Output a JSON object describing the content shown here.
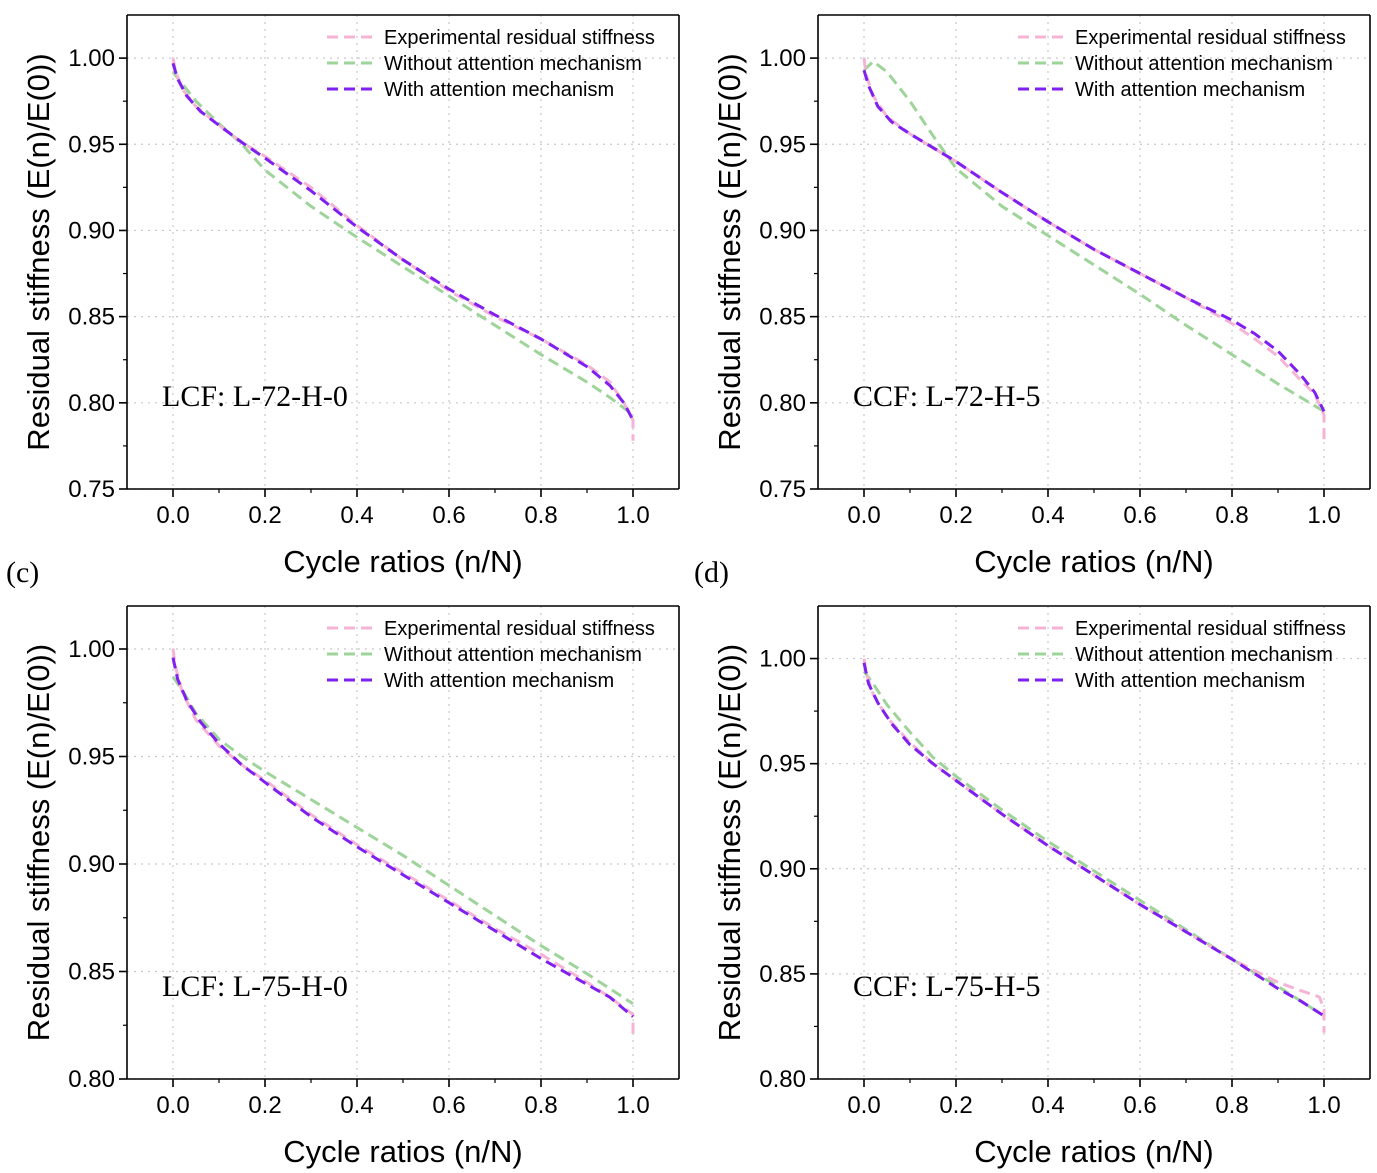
{
  "figure": {
    "panel_letters": [
      "(c)",
      "(d)"
    ]
  },
  "colors": {
    "experimental": "#f5b3d6",
    "without_attention": "#9ed49a",
    "with_attention": "#7f1ff0",
    "grid": "#c8c8c8",
    "axis": "#000000"
  },
  "chart_data": [
    {
      "type": "line",
      "annotation": "LCF: L-72-H-0",
      "xlabel": "Cycle ratios (n/N)",
      "ylabel": "Residual stiffness (E(n)/E(0))",
      "xlim": [
        -0.1,
        1.1
      ],
      "ylim": [
        0.75,
        1.025
      ],
      "xticks": [
        "0.0",
        "0.2",
        "0.4",
        "0.6",
        "0.8",
        "1.0"
      ],
      "yticks": [
        "0.75",
        "0.80",
        "0.85",
        "0.90",
        "0.95",
        "1.00"
      ],
      "grid": true,
      "legend_position": "top-right",
      "series": [
        {
          "name": "Experimental residual stiffness",
          "color": "experimental",
          "x": [
            0,
            0.005,
            0.02,
            0.05,
            0.1,
            0.15,
            0.2,
            0.3,
            0.4,
            0.5,
            0.6,
            0.7,
            0.8,
            0.9,
            0.95,
            0.98,
            1.0,
            1.0
          ],
          "y": [
            1.0,
            0.993,
            0.982,
            0.972,
            0.961,
            0.951,
            0.943,
            0.925,
            0.903,
            0.883,
            0.865,
            0.85,
            0.837,
            0.822,
            0.812,
            0.8,
            0.79,
            0.778
          ]
        },
        {
          "name": "Without attention mechanism",
          "color": "without_attention",
          "x": [
            0,
            0.02,
            0.05,
            0.1,
            0.15,
            0.2,
            0.3,
            0.4,
            0.5,
            0.6,
            0.7,
            0.8,
            0.9,
            0.95,
            1.0
          ],
          "y": [
            0.992,
            0.985,
            0.975,
            0.962,
            0.95,
            0.935,
            0.914,
            0.896,
            0.879,
            0.862,
            0.845,
            0.828,
            0.812,
            0.803,
            0.793
          ]
        },
        {
          "name": "With attention mechanism",
          "color": "with_attention",
          "x": [
            0,
            0.01,
            0.03,
            0.06,
            0.1,
            0.15,
            0.2,
            0.3,
            0.4,
            0.5,
            0.6,
            0.7,
            0.8,
            0.9,
            0.95,
            0.98,
            1.0
          ],
          "y": [
            0.997,
            0.988,
            0.978,
            0.969,
            0.961,
            0.951,
            0.942,
            0.923,
            0.902,
            0.883,
            0.866,
            0.851,
            0.837,
            0.821,
            0.81,
            0.8,
            0.79
          ]
        }
      ]
    },
    {
      "type": "line",
      "annotation": "CCF: L-72-H-5",
      "xlabel": "Cycle ratios (n/N)",
      "ylabel": "Residual stiffness (E(n)/E(0))",
      "xlim": [
        -0.1,
        1.1
      ],
      "ylim": [
        0.75,
        1.025
      ],
      "xticks": [
        "0.0",
        "0.2",
        "0.4",
        "0.6",
        "0.8",
        "1.0"
      ],
      "yticks": [
        "0.75",
        "0.80",
        "0.85",
        "0.90",
        "0.95",
        "1.00"
      ],
      "grid": true,
      "legend_position": "top-right",
      "series": [
        {
          "name": "Experimental residual stiffness",
          "color": "experimental",
          "x": [
            0,
            0.005,
            0.02,
            0.05,
            0.1,
            0.15,
            0.2,
            0.3,
            0.4,
            0.5,
            0.6,
            0.7,
            0.8,
            0.85,
            0.9,
            0.95,
            0.98,
            1.0,
            1.0
          ],
          "y": [
            1.0,
            0.99,
            0.978,
            0.966,
            0.956,
            0.948,
            0.94,
            0.922,
            0.905,
            0.889,
            0.875,
            0.861,
            0.846,
            0.837,
            0.827,
            0.813,
            0.805,
            0.793,
            0.778
          ]
        },
        {
          "name": "Without attention mechanism",
          "color": "without_attention",
          "x": [
            0,
            0.02,
            0.05,
            0.1,
            0.15,
            0.2,
            0.3,
            0.4,
            0.5,
            0.6,
            0.7,
            0.8,
            0.9,
            0.95,
            1.0
          ],
          "y": [
            0.993,
            0.998,
            0.992,
            0.975,
            0.955,
            0.936,
            0.914,
            0.897,
            0.88,
            0.863,
            0.845,
            0.828,
            0.811,
            0.803,
            0.795
          ]
        },
        {
          "name": "With attention mechanism",
          "color": "with_attention",
          "x": [
            0,
            0.01,
            0.03,
            0.06,
            0.1,
            0.15,
            0.2,
            0.3,
            0.4,
            0.5,
            0.6,
            0.7,
            0.8,
            0.85,
            0.9,
            0.95,
            0.98,
            1.0
          ],
          "y": [
            0.993,
            0.984,
            0.972,
            0.963,
            0.956,
            0.948,
            0.94,
            0.922,
            0.905,
            0.889,
            0.875,
            0.861,
            0.848,
            0.84,
            0.83,
            0.816,
            0.806,
            0.795
          ]
        }
      ]
    },
    {
      "type": "line",
      "annotation": "LCF: L-75-H-0",
      "xlabel": "Cycle ratios (n/N)",
      "ylabel": "Residual stiffness (E(n)/E(0))",
      "xlim": [
        -0.1,
        1.1
      ],
      "ylim": [
        0.8,
        1.02
      ],
      "xticks": [
        "0.0",
        "0.2",
        "0.4",
        "0.6",
        "0.8",
        "1.0"
      ],
      "yticks": [
        "0.80",
        "0.85",
        "0.90",
        "0.95",
        "1.00"
      ],
      "grid": true,
      "legend_position": "top-right",
      "series": [
        {
          "name": "Experimental residual stiffness",
          "color": "experimental",
          "x": [
            0,
            0.005,
            0.02,
            0.05,
            0.1,
            0.15,
            0.2,
            0.3,
            0.4,
            0.5,
            0.6,
            0.7,
            0.8,
            0.9,
            0.95,
            1.0,
            1.0
          ],
          "y": [
            1.0,
            0.992,
            0.98,
            0.967,
            0.955,
            0.946,
            0.939,
            0.923,
            0.909,
            0.896,
            0.883,
            0.87,
            0.858,
            0.845,
            0.838,
            0.83,
            0.821
          ]
        },
        {
          "name": "Without attention mechanism",
          "color": "without_attention",
          "x": [
            0,
            0.02,
            0.05,
            0.1,
            0.15,
            0.2,
            0.3,
            0.4,
            0.5,
            0.6,
            0.7,
            0.8,
            0.9,
            1.0
          ],
          "y": [
            0.987,
            0.981,
            0.97,
            0.958,
            0.95,
            0.943,
            0.93,
            0.917,
            0.904,
            0.89,
            0.876,
            0.862,
            0.849,
            0.835
          ]
        },
        {
          "name": "With attention mechanism",
          "color": "with_attention",
          "x": [
            0,
            0.01,
            0.03,
            0.06,
            0.1,
            0.15,
            0.2,
            0.3,
            0.4,
            0.5,
            0.6,
            0.7,
            0.8,
            0.9,
            0.95,
            1.0
          ],
          "y": [
            0.996,
            0.986,
            0.976,
            0.966,
            0.956,
            0.946,
            0.938,
            0.922,
            0.908,
            0.895,
            0.882,
            0.869,
            0.856,
            0.844,
            0.838,
            0.829
          ]
        }
      ]
    },
    {
      "type": "line",
      "annotation": "CCF: L-75-H-5",
      "xlabel": "Cycle ratios (n/N)",
      "ylabel": "Residual stiffness (E(n)/E(0))",
      "xlim": [
        -0.1,
        1.1
      ],
      "ylim": [
        0.8,
        1.025
      ],
      "xticks": [
        "0.0",
        "0.2",
        "0.4",
        "0.6",
        "0.8",
        "1.0"
      ],
      "yticks": [
        "0.80",
        "0.85",
        "0.90",
        "0.95",
        "1.00"
      ],
      "grid": true,
      "legend_position": "top-right",
      "series": [
        {
          "name": "Experimental residual stiffness",
          "color": "experimental",
          "x": [
            0,
            0.005,
            0.02,
            0.05,
            0.1,
            0.15,
            0.2,
            0.3,
            0.4,
            0.5,
            0.6,
            0.7,
            0.8,
            0.9,
            0.95,
            0.99,
            1.0,
            1.0
          ],
          "y": [
            1.0,
            0.993,
            0.983,
            0.972,
            0.96,
            0.95,
            0.942,
            0.926,
            0.911,
            0.897,
            0.883,
            0.87,
            0.857,
            0.846,
            0.842,
            0.839,
            0.833,
            0.822
          ]
        },
        {
          "name": "Without attention mechanism",
          "color": "without_attention",
          "x": [
            0,
            0.02,
            0.05,
            0.1,
            0.15,
            0.2,
            0.3,
            0.4,
            0.5,
            0.6,
            0.7,
            0.8,
            0.9,
            1.0
          ],
          "y": [
            0.994,
            0.988,
            0.978,
            0.965,
            0.953,
            0.944,
            0.928,
            0.913,
            0.899,
            0.885,
            0.871,
            0.857,
            0.844,
            0.83
          ]
        },
        {
          "name": "With attention mechanism",
          "color": "with_attention",
          "x": [
            0,
            0.01,
            0.03,
            0.06,
            0.1,
            0.15,
            0.2,
            0.3,
            0.4,
            0.5,
            0.6,
            0.7,
            0.8,
            0.9,
            0.95,
            1.0
          ],
          "y": [
            0.998,
            0.988,
            0.979,
            0.969,
            0.959,
            0.95,
            0.942,
            0.926,
            0.911,
            0.897,
            0.883,
            0.87,
            0.857,
            0.843,
            0.837,
            0.83
          ]
        }
      ]
    }
  ]
}
